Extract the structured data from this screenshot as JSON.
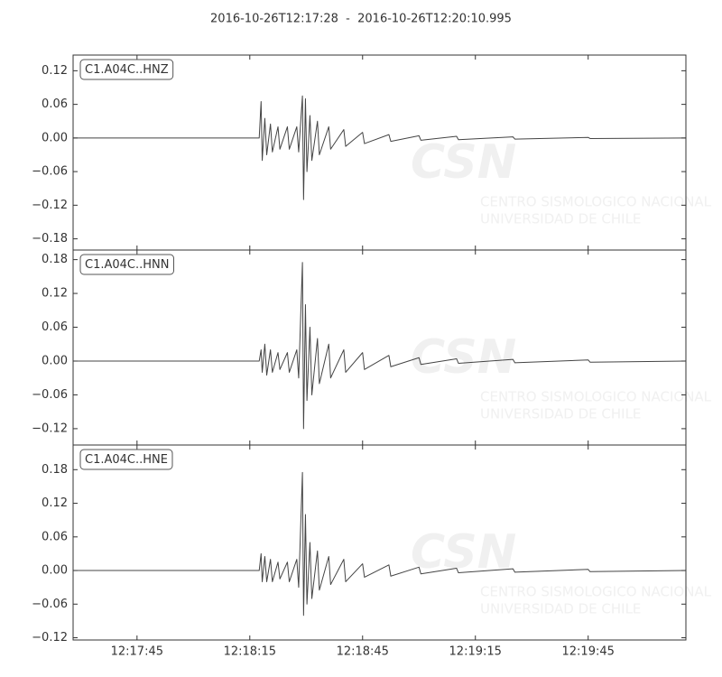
{
  "watermark": {
    "logo": "CSN",
    "line1": "CENTRO SISMOLOGICO NACIONAL",
    "line2": "UNIVERSIDAD DE CHILE"
  },
  "chart_data": {
    "type": "line",
    "title": "2016-10-26T12:17:28  -  2016-10-26T12:20:10.995",
    "xlim": [
      44248,
      44410.995
    ],
    "xticks": [
      {
        "value": 44265,
        "label": "12:17:45"
      },
      {
        "value": 44295,
        "label": "12:18:15"
      },
      {
        "value": 44325,
        "label": "12:18:45"
      },
      {
        "value": 44355,
        "label": "12:19:15"
      },
      {
        "value": 44385,
        "label": "12:19:45"
      }
    ],
    "x": [
      44248,
      44297.5,
      44298,
      44298.3,
      44299,
      44299.5,
      44300.5,
      44301,
      44302.5,
      44303,
      44305,
      44305.5,
      44307.5,
      44308,
      44309,
      44309.3,
      44309.8,
      44310.2,
      44311,
      44311.5,
      44313,
      44313.5,
      44316,
      44316.5,
      44320,
      44320.5,
      44325,
      44325.5,
      44332,
      44332.5,
      44340,
      44340.5,
      44350,
      44350.5,
      44365,
      44365.5,
      44385,
      44385.5,
      44410.995
    ],
    "series": [
      {
        "name": "C1.A04C..HNZ",
        "color": "#444444",
        "ylim": [
          -0.2,
          0.148
        ],
        "yticks": [
          {
            "value": -0.18,
            "label": "−0.18"
          },
          {
            "value": -0.12,
            "label": "−0.12"
          },
          {
            "value": -0.06,
            "label": "−0.06"
          },
          {
            "value": 0,
            "label": "0.00"
          },
          0.06,
          0.12
        ],
        "values": [
          0,
          0,
          0.065,
          -0.04,
          0.035,
          -0.03,
          0.025,
          -0.025,
          0.02,
          -0.02,
          0.02,
          -0.02,
          0.02,
          -0.025,
          0.075,
          -0.11,
          0.07,
          -0.06,
          0.04,
          -0.04,
          0.03,
          -0.03,
          0.02,
          -0.02,
          0.015,
          -0.015,
          0.01,
          -0.01,
          0.006,
          -0.006,
          0.004,
          -0.004,
          0.003,
          -0.003,
          0.002,
          -0.002,
          0.001,
          -0.001,
          0
        ]
      },
      {
        "name": "C1.A04C..HNN",
        "color": "#444444",
        "ylim": [
          -0.149,
          0.197
        ],
        "yticks": [
          {
            "value": -0.12,
            "label": "−0.12"
          },
          {
            "value": -0.06,
            "label": "−0.06"
          },
          {
            "value": 0,
            "label": "0.00"
          },
          0.06,
          0.12,
          0.18
        ],
        "values": [
          0,
          0,
          0.02,
          -0.02,
          0.03,
          -0.025,
          0.02,
          -0.02,
          0.015,
          -0.015,
          0.015,
          -0.02,
          0.02,
          -0.03,
          0.175,
          -0.12,
          0.1,
          -0.07,
          0.06,
          -0.06,
          0.04,
          -0.04,
          0.03,
          -0.03,
          0.02,
          -0.02,
          0.015,
          -0.015,
          0.01,
          -0.01,
          0.006,
          -0.006,
          0.004,
          -0.004,
          0.003,
          -0.003,
          0.002,
          -0.002,
          0
        ]
      },
      {
        "name": "C1.A04C..HNE",
        "color": "#444444",
        "ylim": [
          -0.124,
          0.224
        ],
        "yticks": [
          {
            "value": -0.12,
            "label": "−0.12"
          },
          {
            "value": -0.06,
            "label": "−0.06"
          },
          {
            "value": 0,
            "label": "0.00"
          },
          0.06,
          0.12,
          0.18
        ],
        "values": [
          0,
          0,
          0.03,
          -0.02,
          0.025,
          -0.02,
          0.02,
          -0.02,
          0.015,
          -0.015,
          0.015,
          -0.02,
          0.02,
          -0.03,
          0.175,
          -0.08,
          0.1,
          -0.06,
          0.05,
          -0.05,
          0.035,
          -0.035,
          0.025,
          -0.025,
          0.02,
          -0.02,
          0.012,
          -0.012,
          0.01,
          -0.01,
          0.006,
          -0.006,
          0.004,
          -0.004,
          0.003,
          -0.003,
          0.002,
          -0.002,
          0
        ]
      }
    ]
  }
}
